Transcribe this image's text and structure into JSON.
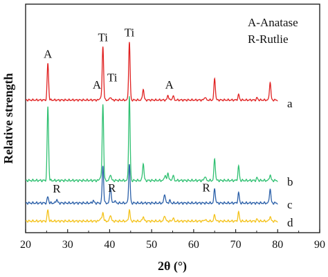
{
  "chart_data": {
    "type": "line",
    "xlabel": "2θ (°)",
    "ylabel": "Relative strength",
    "xlim": [
      20,
      90
    ],
    "x_ticks": [
      "20",
      "30",
      "40",
      "50",
      "60",
      "70",
      "80",
      "90"
    ],
    "legend_lines": [
      "A-Anatase",
      "R-Rutlie"
    ],
    "series": [
      {
        "name": "a",
        "color": "#e02020",
        "baseline": 0.6,
        "peaks": [
          [
            25.3,
            7.0
          ],
          [
            37.8,
            0.5
          ],
          [
            38.4,
            10.2
          ],
          [
            40.2,
            0.6
          ],
          [
            44.7,
            11.0
          ],
          [
            48.0,
            2.1
          ],
          [
            53.9,
            0.9
          ],
          [
            55.1,
            0.8
          ],
          [
            62.7,
            0.6
          ],
          [
            65.0,
            4.1
          ],
          [
            70.7,
            1.0
          ],
          [
            75.1,
            0.4
          ],
          [
            78.2,
            3.4
          ]
        ]
      },
      {
        "name": "b",
        "color": "#2fc071",
        "baseline": 0.15,
        "peaks": [
          [
            25.3,
            11.6
          ],
          [
            37.8,
            0.6
          ],
          [
            38.4,
            12.0
          ],
          [
            40.2,
            1.0
          ],
          [
            44.7,
            13.2
          ],
          [
            48.0,
            2.7
          ],
          [
            53.2,
            0.9
          ],
          [
            53.9,
            1.2
          ],
          [
            55.1,
            0.8
          ],
          [
            62.7,
            0.7
          ],
          [
            65.0,
            3.4
          ],
          [
            70.7,
            2.2
          ],
          [
            75.1,
            0.4
          ],
          [
            78.2,
            0.9
          ]
        ]
      },
      {
        "name": "c",
        "color": "#2a5fa8",
        "baseline": 0.2,
        "peaks": [
          [
            25.3,
            1.0
          ],
          [
            27.4,
            0.6
          ],
          [
            36.1,
            0.4
          ],
          [
            38.4,
            6.0
          ],
          [
            40.2,
            2.6
          ],
          [
            41.2,
            0.4
          ],
          [
            44.7,
            6.2
          ],
          [
            54.3,
            0.4
          ],
          [
            53.1,
            1.5
          ],
          [
            65.0,
            2.3
          ],
          [
            70.7,
            1.6
          ],
          [
            78.2,
            2.3
          ]
        ]
      },
      {
        "name": "d",
        "color": "#f4c21a",
        "baseline": 0.2,
        "peaks": [
          [
            25.3,
            1.9
          ],
          [
            37.8,
            0.5
          ],
          [
            38.4,
            1.5
          ],
          [
            40.2,
            1.1
          ],
          [
            44.7,
            1.9
          ],
          [
            48.0,
            0.8
          ],
          [
            53.1,
            1.0
          ],
          [
            55.1,
            0.5
          ],
          [
            62.7,
            0.3
          ],
          [
            65.0,
            1.1
          ],
          [
            70.7,
            1.5
          ],
          [
            75.1,
            0.3
          ],
          [
            78.2,
            0.8
          ]
        ]
      }
    ],
    "peak_labels": [
      {
        "text": "A",
        "x": 25.3,
        "series": "a"
      },
      {
        "text": "Ti",
        "x": 38.4,
        "series": "a"
      },
      {
        "text": "Ti",
        "x": 44.7,
        "series": "a"
      },
      {
        "text": "A",
        "x": 37.3,
        "series": "a"
      },
      {
        "text": "Ti",
        "x": 40.3,
        "series": "a"
      },
      {
        "text": "A",
        "x": 53.9,
        "series": "a"
      },
      {
        "text": "R",
        "x": 27.4,
        "series": "c"
      },
      {
        "text": "R",
        "x": 41.2,
        "series": "c"
      },
      {
        "text": "R",
        "x": 62.0,
        "series": "c"
      }
    ]
  }
}
